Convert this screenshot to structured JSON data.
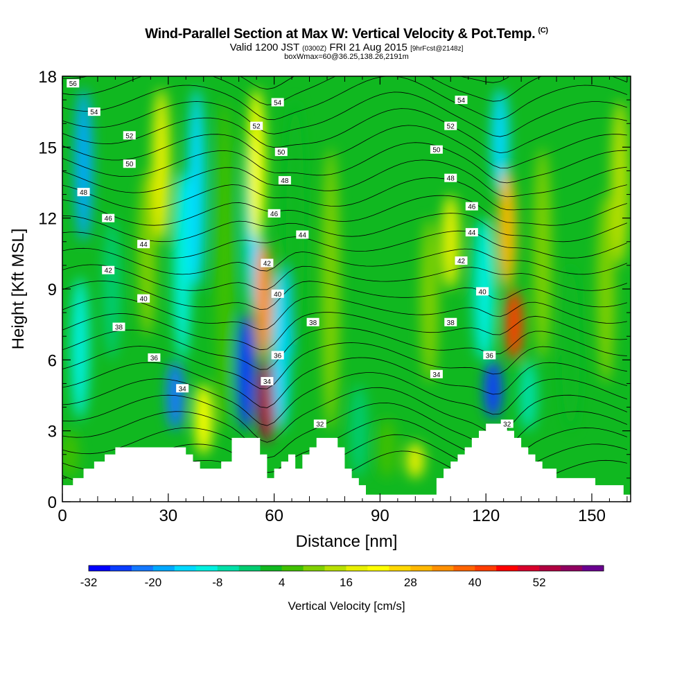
{
  "header": {
    "title": "Wind-Parallel Section at Max W: Vertical Velocity & Pot.Temp.",
    "title_mark": "(C)",
    "valid_prefix": "Valid 1200 JST",
    "valid_utc": "(0300Z)",
    "valid_date": "FRI 21 Aug 2015",
    "forecast_info": "[9hrFcst@2148z]",
    "box_info": "boxWmax=60@36.25,138.26,2191m"
  },
  "chart_data": {
    "type": "heatmap",
    "xlabel": "Distance [nm]",
    "ylabel": "Height [Kft MSL]",
    "xlim": [
      0,
      161
    ],
    "ylim": [
      0,
      18
    ],
    "x_ticks": [
      0,
      30,
      60,
      90,
      120,
      150
    ],
    "y_ticks": [
      0,
      3,
      6,
      9,
      12,
      15,
      18
    ],
    "colorbar": {
      "label": "Vertical Velocity [cm/s]",
      "tick_labels": [
        "-32",
        "-20",
        "-8",
        "4",
        "16",
        "28",
        "40",
        "52"
      ],
      "tick_values": [
        -32,
        -20,
        -8,
        4,
        16,
        28,
        40,
        52
      ],
      "min": -32,
      "max": 60,
      "step": 4,
      "colors": [
        "#0000ff",
        "#0a3cff",
        "#1478ff",
        "#00a8ff",
        "#00d8ff",
        "#00f0e0",
        "#00e0a8",
        "#00cc70",
        "#10b820",
        "#40c000",
        "#80d000",
        "#b8e000",
        "#e8f000",
        "#ffff00",
        "#ffd800",
        "#ffb800",
        "#ff9000",
        "#ff6400",
        "#ff3c00",
        "#ff0000",
        "#d8002c",
        "#b00040",
        "#900060",
        "#6a0090"
      ]
    },
    "velocity_cells": [
      {
        "x": 2,
        "y_min": 1.0,
        "y_max": 3.0,
        "w": 4
      },
      {
        "x": 5,
        "y_min": 3.5,
        "y_max": 9.5,
        "w": -12
      },
      {
        "x": 6,
        "y_min": 11.0,
        "y_max": 17.5,
        "w": -18
      },
      {
        "x": 14,
        "y_min": 6.0,
        "y_max": 12.0,
        "w": -4
      },
      {
        "x": 24,
        "y_min": 7.0,
        "y_max": 14.0,
        "w": 8
      },
      {
        "x": 28,
        "y_min": 11.0,
        "y_max": 17.5,
        "w": 16
      },
      {
        "x": 32,
        "y_min": 3.0,
        "y_max": 6.0,
        "w": -24
      },
      {
        "x": 34,
        "y_min": 6.0,
        "y_max": 14.0,
        "w": -12
      },
      {
        "x": 38,
        "y_min": 9.0,
        "y_max": 17.5,
        "w": -16
      },
      {
        "x": 40,
        "y_min": 2.0,
        "y_max": 5.0,
        "w": 20
      },
      {
        "x": 46,
        "y_min": 3.0,
        "y_max": 17.0,
        "w": 4
      },
      {
        "x": 52,
        "y_min": 3.0,
        "y_max": 8.0,
        "w": -28
      },
      {
        "x": 54,
        "y_min": 8.0,
        "y_max": 16.0,
        "w": -16
      },
      {
        "x": 58,
        "y_min": 2.5,
        "y_max": 6.0,
        "w": 52
      },
      {
        "x": 57,
        "y_min": 6.0,
        "y_max": 11.0,
        "w": 32
      },
      {
        "x": 55,
        "y_min": 11.0,
        "y_max": 17.5,
        "w": 20
      },
      {
        "x": 62,
        "y_min": 3.0,
        "y_max": 10.0,
        "w": -16
      },
      {
        "x": 66,
        "y_min": 6.0,
        "y_max": 17.0,
        "w": 0
      },
      {
        "x": 76,
        "y_min": 3.0,
        "y_max": 15.0,
        "w": 8
      },
      {
        "x": 84,
        "y_min": 1.0,
        "y_max": 5.0,
        "w": -4
      },
      {
        "x": 92,
        "y_min": 1.0,
        "y_max": 3.5,
        "w": 4
      },
      {
        "x": 100,
        "y_min": 1.0,
        "y_max": 2.5,
        "w": 16
      },
      {
        "x": 104,
        "y_min": 5.0,
        "y_max": 12.0,
        "w": 8
      },
      {
        "x": 110,
        "y_min": 9.0,
        "y_max": 13.0,
        "w": 16
      },
      {
        "x": 118,
        "y_min": 6.0,
        "y_max": 12.0,
        "w": -4
      },
      {
        "x": 122,
        "y_min": 3.5,
        "y_max": 6.0,
        "w": -28
      },
      {
        "x": 120,
        "y_min": 6.0,
        "y_max": 12.0,
        "w": -12
      },
      {
        "x": 124,
        "y_min": 13.0,
        "y_max": 17.5,
        "w": -16
      },
      {
        "x": 128,
        "y_min": 6.0,
        "y_max": 9.0,
        "w": 40
      },
      {
        "x": 126,
        "y_min": 9.0,
        "y_max": 14.0,
        "w": 28
      },
      {
        "x": 132,
        "y_min": 3.0,
        "y_max": 6.0,
        "w": -8
      },
      {
        "x": 136,
        "y_min": 6.0,
        "y_max": 15.0,
        "w": 8
      },
      {
        "x": 144,
        "y_min": 3.0,
        "y_max": 10.0,
        "w": 0
      },
      {
        "x": 154,
        "y_min": 5.0,
        "y_max": 13.0,
        "w": 8
      },
      {
        "x": 158,
        "y_min": 10.0,
        "y_max": 17.0,
        "w": 12
      }
    ],
    "terrain": [
      {
        "x": 0,
        "top": 0.7
      },
      {
        "x": 3,
        "top": 1.0
      },
      {
        "x": 6,
        "top": 1.4
      },
      {
        "x": 9,
        "top": 1.7
      },
      {
        "x": 12,
        "top": 2.0
      },
      {
        "x": 15,
        "top": 2.3
      },
      {
        "x": 18,
        "top": 2.3
      },
      {
        "x": 21,
        "top": 2.3
      },
      {
        "x": 24,
        "top": 2.3
      },
      {
        "x": 27,
        "top": 2.3
      },
      {
        "x": 30,
        "top": 2.3
      },
      {
        "x": 33,
        "top": 2.3
      },
      {
        "x": 35,
        "top": 2.0
      },
      {
        "x": 37,
        "top": 1.7
      },
      {
        "x": 39,
        "top": 1.4
      },
      {
        "x": 42,
        "top": 1.4
      },
      {
        "x": 45,
        "top": 1.7
      },
      {
        "x": 48,
        "top": 2.7
      },
      {
        "x": 51,
        "top": 2.7
      },
      {
        "x": 54,
        "top": 2.7
      },
      {
        "x": 56,
        "top": 2.0
      },
      {
        "x": 58,
        "top": 1.0
      },
      {
        "x": 60,
        "top": 1.4
      },
      {
        "x": 62,
        "top": 1.7
      },
      {
        "x": 64,
        "top": 2.0
      },
      {
        "x": 66,
        "top": 1.4
      },
      {
        "x": 68,
        "top": 2.0
      },
      {
        "x": 70,
        "top": 2.3
      },
      {
        "x": 72,
        "top": 2.7
      },
      {
        "x": 74,
        "top": 2.7
      },
      {
        "x": 76,
        "top": 2.7
      },
      {
        "x": 78,
        "top": 2.3
      },
      {
        "x": 80,
        "top": 1.4
      },
      {
        "x": 82,
        "top": 1.0
      },
      {
        "x": 84,
        "top": 0.7
      },
      {
        "x": 86,
        "top": 0.3
      },
      {
        "x": 88,
        "top": 0.3
      },
      {
        "x": 90,
        "top": 0.3
      },
      {
        "x": 92,
        "top": 0.3
      },
      {
        "x": 95,
        "top": 0.3
      },
      {
        "x": 98,
        "top": 0.3
      },
      {
        "x": 101,
        "top": 0.3
      },
      {
        "x": 104,
        "top": 0.3
      },
      {
        "x": 106,
        "top": 1.0
      },
      {
        "x": 108,
        "top": 1.4
      },
      {
        "x": 110,
        "top": 1.7
      },
      {
        "x": 112,
        "top": 2.0
      },
      {
        "x": 114,
        "top": 2.3
      },
      {
        "x": 116,
        "top": 2.7
      },
      {
        "x": 118,
        "top": 3.0
      },
      {
        "x": 120,
        "top": 3.3
      },
      {
        "x": 122,
        "top": 3.3
      },
      {
        "x": 124,
        "top": 3.3
      },
      {
        "x": 126,
        "top": 3.0
      },
      {
        "x": 128,
        "top": 2.7
      },
      {
        "x": 130,
        "top": 2.3
      },
      {
        "x": 132,
        "top": 2.0
      },
      {
        "x": 134,
        "top": 1.7
      },
      {
        "x": 136,
        "top": 1.4
      },
      {
        "x": 138,
        "top": 1.4
      },
      {
        "x": 140,
        "top": 1.0
      },
      {
        "x": 143,
        "top": 1.0
      },
      {
        "x": 146,
        "top": 1.0
      },
      {
        "x": 149,
        "top": 1.0
      },
      {
        "x": 151,
        "top": 0.7
      },
      {
        "x": 154,
        "top": 0.7
      },
      {
        "x": 157,
        "top": 0.7
      },
      {
        "x": 159,
        "top": 0.3
      },
      {
        "x": 161,
        "top": 0.3
      }
    ],
    "contour_labels": [
      {
        "text": "56",
        "x": 3,
        "y": 17.7
      },
      {
        "text": "54",
        "x": 9,
        "y": 16.5
      },
      {
        "text": "52",
        "x": 19,
        "y": 15.5
      },
      {
        "text": "50",
        "x": 19,
        "y": 14.3
      },
      {
        "text": "48",
        "x": 6,
        "y": 13.1
      },
      {
        "text": "46",
        "x": 13,
        "y": 12.0
      },
      {
        "text": "44",
        "x": 23,
        "y": 10.9
      },
      {
        "text": "42",
        "x": 13,
        "y": 9.8
      },
      {
        "text": "40",
        "x": 23,
        "y": 8.6
      },
      {
        "text": "38",
        "x": 16,
        "y": 7.4
      },
      {
        "text": "36",
        "x": 26,
        "y": 6.1
      },
      {
        "text": "34",
        "x": 34,
        "y": 4.8
      },
      {
        "text": "54",
        "x": 61,
        "y": 16.9
      },
      {
        "text": "52",
        "x": 55,
        "y": 15.9
      },
      {
        "text": "50",
        "x": 62,
        "y": 14.8
      },
      {
        "text": "48",
        "x": 63,
        "y": 13.6
      },
      {
        "text": "46",
        "x": 60,
        "y": 12.2
      },
      {
        "text": "44",
        "x": 68,
        "y": 11.3
      },
      {
        "text": "42",
        "x": 58,
        "y": 10.1
      },
      {
        "text": "40",
        "x": 61,
        "y": 8.8
      },
      {
        "text": "38",
        "x": 71,
        "y": 7.6
      },
      {
        "text": "36",
        "x": 61,
        "y": 6.2
      },
      {
        "text": "34",
        "x": 58,
        "y": 5.1
      },
      {
        "text": "32",
        "x": 73,
        "y": 3.3
      },
      {
        "text": "54",
        "x": 113,
        "y": 17.0
      },
      {
        "text": "52",
        "x": 110,
        "y": 15.9
      },
      {
        "text": "50",
        "x": 106,
        "y": 14.9
      },
      {
        "text": "48",
        "x": 110,
        "y": 13.7
      },
      {
        "text": "46",
        "x": 116,
        "y": 12.5
      },
      {
        "text": "44",
        "x": 116,
        "y": 11.4
      },
      {
        "text": "42",
        "x": 113,
        "y": 10.2
      },
      {
        "text": "40",
        "x": 119,
        "y": 8.9
      },
      {
        "text": "38",
        "x": 110,
        "y": 7.6
      },
      {
        "text": "36",
        "x": 121,
        "y": 6.2
      },
      {
        "text": "34",
        "x": 106,
        "y": 5.4
      },
      {
        "text": "32",
        "x": 126,
        "y": 3.3
      }
    ]
  }
}
